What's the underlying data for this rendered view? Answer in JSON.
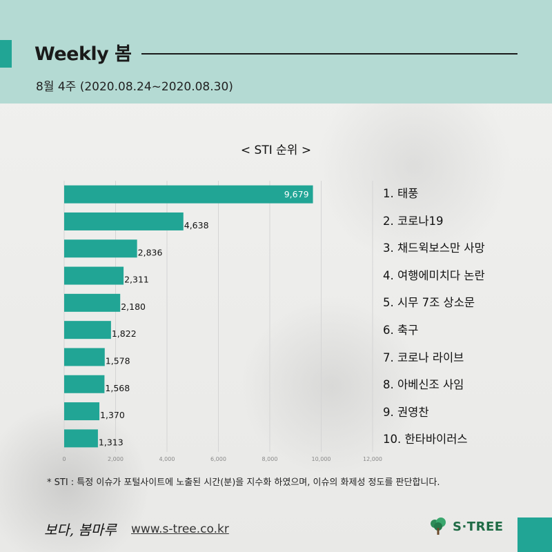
{
  "header": {
    "title": "Weekly 봄",
    "subtitle": "8월 4주 (2020.08.24~2020.08.30)"
  },
  "chart_data": {
    "type": "bar",
    "orientation": "horizontal",
    "title": "< STI 순위 >",
    "categories": [
      "1. 태풍",
      "2. 코로나19",
      "3. 채드윅보스만 사망",
      "4. 여행에미치다 논란",
      "5. 시무 7조 상소문",
      "6. 축구",
      "7. 코로나 라이브",
      "8. 아베신조 사임",
      "9. 권영찬",
      "10. 한타바이러스"
    ],
    "values": [
      9679,
      4638,
      2836,
      2311,
      2180,
      1822,
      1578,
      1568,
      1370,
      1313
    ],
    "value_labels": [
      "9,679",
      "4,638",
      "2,836",
      "2,311",
      "2,180",
      "1,822",
      "1,578",
      "1,568",
      "1,370",
      "1,313"
    ],
    "xlim": [
      0,
      12000
    ],
    "xticks": [
      0,
      2000,
      4000,
      6000,
      8000,
      10000,
      12000
    ],
    "xtick_labels": [
      "0",
      "2,000",
      "4,000",
      "6,000",
      "8,000",
      "10,000",
      "12,000"
    ],
    "grid": true,
    "bar_color": "#21a595"
  },
  "footnote": "* STI : 특정 이슈가 포털사이트에 노출된 시간(분)을 지수화 하였으며, 이슈의 화제성 정도를 판단합니다.",
  "footer": {
    "brand": "보다, 봄마루",
    "site": "www.s-tree.co.kr",
    "logo_text": "S·TREE",
    "logo_icon": "tree-icon"
  },
  "colors": {
    "accent": "#21a595",
    "header_bg": "#b4dad3"
  }
}
